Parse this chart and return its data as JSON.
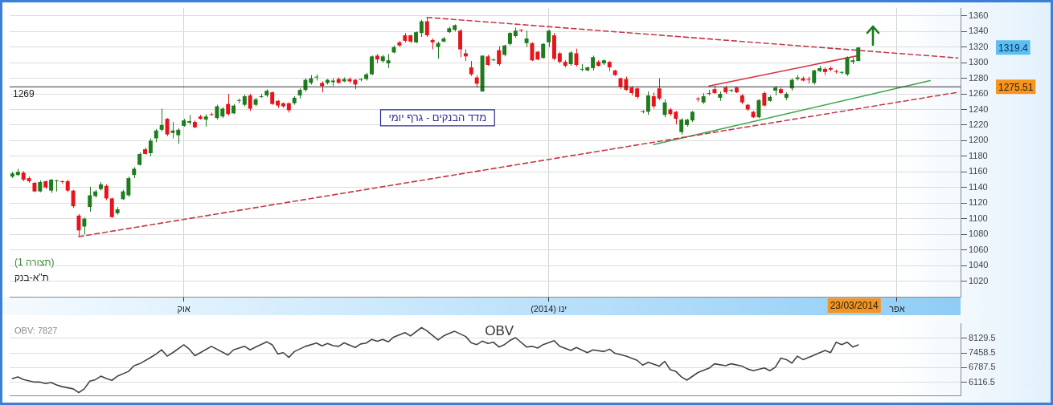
{
  "chart_data": [
    {
      "type": "candlestick",
      "title": "מדד הבנקים - גרף יומי",
      "categories": [
        null,
        null,
        null,
        null,
        null,
        null,
        null,
        null,
        null,
        null,
        null,
        null,
        null,
        null,
        null,
        null,
        null,
        null,
        null,
        null,
        null,
        null,
        null,
        null,
        null,
        null,
        null,
        null,
        null,
        null,
        null,
        "אוק",
        null,
        null,
        null,
        null,
        null,
        null,
        null,
        null,
        null,
        null,
        null,
        null,
        null,
        null,
        null,
        null,
        null,
        null,
        null,
        null,
        null,
        null,
        null,
        null,
        null,
        null,
        null,
        null,
        null,
        null,
        null,
        null,
        null,
        null,
        null,
        null,
        null,
        null,
        null,
        null,
        null,
        null,
        null,
        null,
        null,
        null,
        null,
        null,
        null,
        null,
        null,
        null,
        null,
        null,
        null,
        null,
        null,
        null,
        null,
        null,
        null,
        null,
        null,
        null,
        null,
        "ינו (2014)",
        null,
        null,
        null,
        null,
        null,
        null,
        null,
        null,
        null,
        null,
        null,
        null,
        null,
        null,
        null,
        null,
        null,
        null,
        null,
        null,
        null,
        null,
        null,
        null,
        null,
        null,
        null,
        null,
        null,
        null,
        null,
        null,
        null,
        null,
        null,
        null,
        null,
        null,
        null,
        null,
        null,
        null,
        null,
        null,
        null,
        null,
        null,
        null,
        null,
        null,
        null,
        null,
        null,
        null,
        null,
        null,
        null,
        null,
        null,
        null,
        null,
        null,
        "אפר",
        null,
        null,
        null,
        null,
        null,
        null,
        null,
        null,
        null,
        null,
        null
      ],
      "ohlc": [
        [
          1154,
          1160,
          1152,
          1158
        ],
        [
          1156,
          1164,
          1155,
          1160
        ],
        [
          1159,
          1161,
          1148,
          1150
        ],
        [
          1152,
          1154,
          1146,
          1148
        ],
        [
          1146,
          1147,
          1134,
          1135
        ],
        [
          1135,
          1149,
          1134,
          1147
        ],
        [
          1148,
          1149,
          1138,
          1140
        ],
        [
          1136,
          1151,
          1133,
          1150
        ],
        [
          1148,
          1150,
          1135,
          1148
        ],
        [
          1147,
          1149,
          1145,
          1147
        ],
        [
          1148,
          1150,
          1134,
          1136
        ],
        [
          1136,
          1137,
          1114,
          1116
        ],
        [
          1104,
          1106,
          1077,
          1085
        ],
        [
          1090,
          1102,
          1080,
          1100
        ],
        [
          1115,
          1141,
          1109,
          1130
        ],
        [
          1129,
          1137,
          1127,
          1135
        ],
        [
          1138,
          1147,
          1136,
          1144
        ],
        [
          1142,
          1144,
          1124,
          1126
        ],
        [
          1126,
          1127,
          1101,
          1102
        ],
        [
          1107,
          1115,
          1105,
          1112
        ],
        [
          1125,
          1137,
          1124,
          1135
        ],
        [
          1130,
          1154,
          1128,
          1152
        ],
        [
          1156,
          1166,
          1152,
          1164
        ],
        [
          1169,
          1185,
          1168,
          1183
        ],
        [
          1189,
          1191,
          1182,
          1183
        ],
        [
          1184,
          1203,
          1180,
          1200
        ],
        [
          1203,
          1215,
          1198,
          1213
        ],
        [
          1214,
          1241,
          1212,
          1220
        ],
        [
          1228,
          1229,
          1206,
          1208
        ],
        [
          1210,
          1224,
          1203,
          1213
        ],
        [
          1207,
          1216,
          1196,
          1214
        ],
        [
          1219,
          1228,
          1218,
          1226
        ],
        [
          1223,
          1233,
          1221,
          1225
        ],
        [
          1224,
          1226,
          1216,
          1217
        ],
        [
          1231,
          1233,
          1227,
          1228
        ],
        [
          1227,
          1234,
          1218,
          1231
        ],
        [
          1233,
          1236,
          1232,
          1234
        ],
        [
          1229,
          1246,
          1227,
          1244
        ],
        [
          1231,
          1243,
          1229,
          1241
        ],
        [
          1247,
          1260,
          1232,
          1234
        ],
        [
          1235,
          1247,
          1234,
          1245
        ],
        [
          1251,
          1254,
          1248,
          1251
        ],
        [
          1246,
          1259,
          1244,
          1257
        ],
        [
          1258,
          1260,
          1238,
          1241
        ],
        [
          1246,
          1255,
          1244,
          1253
        ],
        [
          1256,
          1260,
          1255,
          1256
        ],
        [
          1258,
          1266,
          1256,
          1264
        ],
        [
          1262,
          1263,
          1246,
          1247
        ],
        [
          1251,
          1252,
          1242,
          1245
        ],
        [
          1248,
          1249,
          1242,
          1244
        ],
        [
          1248,
          1249,
          1236,
          1239
        ],
        [
          1248,
          1257,
          1246,
          1255
        ],
        [
          1258,
          1267,
          1254,
          1265
        ],
        [
          1265,
          1280,
          1263,
          1278
        ],
        [
          1274,
          1284,
          1272,
          1280
        ],
        [
          1281,
          1285,
          1277,
          1281
        ],
        [
          1274,
          1276,
          1262,
          1270
        ],
        [
          1274,
          1279,
          1272,
          1278
        ],
        [
          1275,
          1280,
          1270,
          1277
        ],
        [
          1279,
          1281,
          1273,
          1274
        ],
        [
          1276,
          1281,
          1275,
          1279
        ],
        [
          1279,
          1281,
          1274,
          1276
        ],
        [
          1278,
          1279,
          1266,
          1272
        ],
        [
          1278,
          1280,
          1276,
          1278
        ],
        [
          1279,
          1287,
          1277,
          1285
        ],
        [
          1285,
          1309,
          1284,
          1308
        ],
        [
          1309,
          1311,
          1299,
          1304
        ],
        [
          1302,
          1310,
          1300,
          1308
        ],
        [
          1299,
          1311,
          1293,
          1303
        ],
        [
          1313,
          1322,
          1312,
          1320
        ],
        [
          1326,
          1328,
          1320,
          1322
        ],
        [
          1335,
          1338,
          1326,
          1328
        ],
        [
          1335,
          1336,
          1325,
          1327
        ],
        [
          1326,
          1340,
          1325,
          1339
        ],
        [
          1338,
          1355,
          1333,
          1353
        ],
        [
          1353,
          1358,
          1333,
          1335
        ],
        [
          1329,
          1331,
          1317,
          1326
        ],
        [
          1320,
          1327,
          1305,
          1325
        ],
        [
          1327,
          1333,
          1326,
          1331
        ],
        [
          1339,
          1346,
          1338,
          1344
        ],
        [
          1342,
          1349,
          1340,
          1348
        ],
        [
          1341,
          1343,
          1307,
          1317
        ],
        [
          1312,
          1317,
          1302,
          1308
        ],
        [
          1294,
          1302,
          1283,
          1285
        ],
        [
          1281,
          1284,
          1268,
          1273
        ],
        [
          1263,
          1309,
          1263,
          1309
        ],
        [
          1308,
          1310,
          1296,
          1297
        ],
        [
          1303,
          1305,
          1302,
          1303
        ],
        [
          1316,
          1321,
          1296,
          1298
        ],
        [
          1310,
          1323,
          1308,
          1322
        ],
        [
          1324,
          1339,
          1322,
          1338
        ],
        [
          1334,
          1345,
          1332,
          1341
        ],
        [
          1341,
          1343,
          1339,
          1341
        ],
        [
          1325,
          1341,
          1320,
          1331
        ],
        [
          1325,
          1326,
          1302,
          1303
        ],
        [
          1314,
          1315,
          1303,
          1304
        ],
        [
          1306,
          1325,
          1305,
          1324
        ],
        [
          1326,
          1342,
          1320,
          1341
        ],
        [
          1335,
          1338,
          1303,
          1305
        ],
        [
          1312,
          1314,
          1299,
          1301
        ],
        [
          1301,
          1303,
          1294,
          1296
        ],
        [
          1298,
          1315,
          1296,
          1313
        ],
        [
          1312,
          1318,
          1295,
          1297
        ],
        [
          1291,
          1298,
          1289,
          1291
        ],
        [
          1290,
          1295,
          1289,
          1294
        ],
        [
          1293,
          1309,
          1290,
          1307
        ],
        [
          1301,
          1303,
          1295,
          1296
        ],
        [
          1299,
          1304,
          1297,
          1303
        ],
        [
          1301,
          1302,
          1289,
          1294
        ],
        [
          1290,
          1291,
          1283,
          1284
        ],
        [
          1280,
          1281,
          1266,
          1269
        ],
        [
          1279,
          1282,
          1264,
          1265
        ],
        [
          1268,
          1270,
          1258,
          1261
        ],
        [
          1267,
          1268,
          1254,
          1256
        ],
        [
          1237,
          1239,
          1235,
          1237
        ],
        [
          1237,
          1263,
          1233,
          1258
        ],
        [
          1257,
          1262,
          1241,
          1244
        ],
        [
          1267,
          1280,
          1252,
          1254
        ],
        [
          1233,
          1253,
          1230,
          1249
        ],
        [
          1240,
          1242,
          1232,
          1234
        ],
        [
          1237,
          1238,
          1221,
          1228
        ],
        [
          1211,
          1229,
          1208,
          1227
        ],
        [
          1220,
          1228,
          1218,
          1227
        ],
        [
          1226,
          1238,
          1224,
          1237
        ],
        [
          1253,
          1256,
          1250,
          1253
        ],
        [
          1249,
          1261,
          1247,
          1257
        ],
        [
          1260,
          1265,
          1258,
          1261
        ],
        [
          1266,
          1270,
          1260,
          1261
        ],
        [
          1255,
          1263,
          1251,
          1260
        ],
        [
          1268,
          1270,
          1260,
          1262
        ],
        [
          1264,
          1266,
          1262,
          1264
        ],
        [
          1268,
          1269,
          1261,
          1262
        ],
        [
          1258,
          1260,
          1247,
          1249
        ],
        [
          1246,
          1247,
          1238,
          1240
        ],
        [
          1237,
          1238,
          1229,
          1230
        ],
        [
          1230,
          1253,
          1229,
          1252
        ],
        [
          1261,
          1263,
          1244,
          1245
        ],
        [
          1251,
          1258,
          1250,
          1256
        ],
        [
          1264,
          1270,
          1258,
          1268
        ],
        [
          1266,
          1268,
          1260,
          1261
        ],
        [
          1255,
          1262,
          1252,
          1260
        ],
        [
          1267,
          1280,
          1264,
          1278
        ],
        [
          1279,
          1284,
          1277,
          1281
        ],
        [
          1280,
          1282,
          1276,
          1277
        ],
        [
          1278,
          1282,
          1273,
          1278
        ],
        [
          1274,
          1291,
          1272,
          1290
        ],
        [
          1289,
          1296,
          1288,
          1293
        ],
        [
          1292,
          1294,
          1284,
          1288
        ],
        [
          1293,
          1295,
          1289,
          1291
        ],
        [
          1288,
          1291,
          1286,
          1288
        ],
        [
          1287,
          1289,
          1285,
          1287
        ],
        [
          1285,
          1308,
          1283,
          1307
        ],
        [
          1301,
          1306,
          1298,
          1303
        ],
        [
          1302,
          1320,
          1302,
          1319.4
        ],
        null,
        null,
        null,
        null,
        null,
        null,
        null,
        null,
        null,
        null,
        null,
        null,
        null,
        null,
        null,
        null,
        null,
        null
      ],
      "colors": [
        "#1e7b1e",
        "#1e7b1e",
        "#e8141c",
        "#e8141c",
        "#e8141c",
        "#1e7b1e",
        "#e8141c",
        "#1e7b1e",
        "#1e7b1e",
        "#e8141c",
        "#e8141c",
        "#e8141c",
        "#e8141c",
        "#1e7b1e",
        "#1e7b1e",
        "#1e7b1e",
        "#1e7b1e",
        "#e8141c",
        "#e8141c",
        "#1e7b1e",
        "#1e7b1e",
        "#1e7b1e",
        "#1e7b1e",
        "#1e7b1e",
        "#e8141c",
        "#1e7b1e",
        "#1e7b1e",
        "#1e7b1e",
        "#e8141c",
        "#1e7b1e",
        "#1e7b1e",
        "#1e7b1e",
        "#1e7b1e",
        "#e8141c",
        "#e8141c",
        "#1e7b1e",
        "#e8141c",
        "#1e7b1e",
        "#1e7b1e",
        "#e8141c",
        "#1e7b1e",
        "#1e7b1e",
        "#1e7b1e",
        "#e8141c",
        "#1e7b1e",
        "#1e7b1e",
        "#1e7b1e",
        "#e8141c",
        "#e8141c",
        "#e8141c",
        "#e8141c",
        "#1e7b1e",
        "#1e7b1e",
        "#1e7b1e",
        "#1e7b1e",
        "#1e7b1e",
        "#e8141c",
        "#1e7b1e",
        "#1e7b1e",
        "#e8141c",
        "#1e7b1e",
        "#e8141c",
        "#e8141c",
        "#1e7b1e",
        "#1e7b1e",
        "#1e7b1e",
        "#e8141c",
        "#1e7b1e",
        "#1e7b1e",
        "#1e7b1e",
        "#e8141c",
        "#e8141c",
        "#e8141c",
        "#1e7b1e",
        "#1e7b1e",
        "#e8141c",
        "#e8141c",
        "#1e7b1e",
        "#1e7b1e",
        "#1e7b1e",
        "#1e7b1e",
        "#e8141c",
        "#e8141c",
        "#e8141c",
        "#e8141c",
        "#1e7b1e",
        "#e8141c",
        "#1e7b1e",
        "#e8141c",
        "#1e7b1e",
        "#1e7b1e",
        "#1e7b1e",
        "#e8141c",
        "#1e7b1e",
        "#e8141c",
        "#e8141c",
        "#1e7b1e",
        "#1e7b1e",
        "#e8141c",
        "#e8141c",
        "#e8141c",
        "#1e7b1e",
        "#e8141c",
        "#1e7b1e",
        "#1e7b1e",
        "#1e7b1e",
        "#e8141c",
        "#1e7b1e",
        "#e8141c",
        "#e8141c",
        "#e8141c",
        "#e8141c",
        "#e8141c",
        "#e8141c",
        "#e8141c",
        "#1e7b1e",
        "#e8141c",
        "#e8141c",
        "#1e7b1e",
        "#e8141c",
        "#e8141c",
        "#1e7b1e",
        "#1e7b1e",
        "#1e7b1e",
        "#e8141c",
        "#1e7b1e",
        "#1e7b1e",
        "#e8141c",
        "#1e7b1e",
        "#e8141c",
        "#1e7b1e",
        "#e8141c",
        "#e8141c",
        "#e8141c",
        "#e8141c",
        "#1e7b1e",
        "#e8141c",
        "#1e7b1e",
        "#1e7b1e",
        "#e8141c",
        "#1e7b1e",
        "#1e7b1e",
        "#1e7b1e",
        "#e8141c",
        "#e8141c",
        "#1e7b1e",
        "#1e7b1e",
        "#e8141c",
        "#e8141c",
        "#e8141c",
        "#1e7b1e",
        "#1e7b1e",
        "#1e7b1e",
        "#1e7b1e",
        null,
        null,
        null,
        null,
        null,
        null,
        null,
        null,
        null,
        null,
        null,
        null,
        null,
        null,
        null,
        null,
        null,
        null
      ],
      "series": [
        {
          "type": "line",
          "color": "#c23b4a",
          "line_style": "dashed",
          "values": [
            null,
            null,
            null,
            null,
            null,
            null,
            null,
            null,
            null,
            null,
            null,
            null,
            1077,
            null,
            null,
            null,
            null,
            null,
            null,
            null,
            null,
            null,
            null,
            null,
            null,
            null,
            null,
            null,
            null,
            null,
            null,
            null,
            null,
            null,
            null,
            null,
            null,
            null,
            null,
            null,
            null,
            null,
            null,
            null,
            null,
            null,
            null,
            null,
            null,
            null,
            null,
            null,
            null,
            null,
            null,
            null,
            null,
            null,
            null,
            null,
            null,
            null,
            null,
            null,
            null,
            null,
            null,
            null,
            null,
            null,
            null,
            null,
            null,
            null,
            null,
            null,
            null,
            null,
            null,
            null,
            null,
            null,
            null,
            null,
            null,
            null,
            null,
            null,
            null,
            null,
            null,
            null,
            null,
            null,
            null,
            null,
            null,
            null,
            null,
            null,
            null,
            null,
            null,
            null,
            null,
            null,
            null,
            null,
            null,
            null,
            null,
            null,
            null,
            null,
            null,
            null,
            null,
            null,
            null,
            null,
            null,
            null,
            null,
            null,
            null,
            null,
            null,
            null,
            null,
            null,
            null,
            null,
            null,
            null,
            null,
            null,
            null,
            null,
            null,
            null,
            null,
            null,
            null,
            null,
            null,
            null,
            null,
            null,
            null,
            null,
            null,
            null,
            null,
            null,
            null,
            null,
            null,
            null,
            null,
            null,
            null,
            null,
            null,
            null,
            null,
            null,
            null,
            null,
            null,
            null,
            null,
            1262
          ]
        },
        {
          "type": "line",
          "color": "#c23b4a",
          "line_style": "dashed",
          "values": [
            null,
            null,
            null,
            null,
            null,
            null,
            null,
            null,
            null,
            null,
            null,
            null,
            null,
            null,
            null,
            null,
            null,
            null,
            null,
            null,
            null,
            null,
            null,
            null,
            null,
            null,
            null,
            null,
            null,
            null,
            null,
            null,
            null,
            null,
            null,
            null,
            null,
            null,
            null,
            null,
            null,
            null,
            null,
            null,
            null,
            null,
            null,
            null,
            null,
            null,
            null,
            null,
            null,
            null,
            null,
            null,
            null,
            null,
            null,
            null,
            null,
            null,
            null,
            null,
            null,
            null,
            null,
            null,
            null,
            null,
            null,
            null,
            null,
            null,
            null,
            1358,
            null,
            null,
            null,
            null,
            null,
            null,
            null,
            null,
            null,
            null,
            null,
            null,
            null,
            null,
            null,
            null,
            null,
            null,
            null,
            null,
            null,
            null,
            null,
            null,
            null,
            null,
            null,
            null,
            null,
            null,
            null,
            null,
            null,
            null,
            null,
            null,
            null,
            null,
            null,
            null,
            null,
            null,
            null,
            null,
            null,
            null,
            null,
            null,
            null,
            null,
            null,
            null,
            null,
            null,
            null,
            null,
            null,
            null,
            null,
            null,
            null,
            null,
            null,
            null,
            null,
            null,
            null,
            null,
            null,
            null,
            null,
            null,
            null,
            null,
            null,
            null,
            null,
            null,
            null,
            null,
            null,
            null,
            null,
            null,
            null,
            null,
            null,
            null,
            null,
            null,
            null,
            null,
            null,
            null,
            null,
            1306
          ]
        },
        {
          "type": "line",
          "color": "#3fa34d",
          "line_style": "solid",
          "values": [
            null,
            null,
            null,
            null,
            null,
            null,
            null,
            null,
            null,
            null,
            null,
            null,
            null,
            null,
            null,
            null,
            null,
            null,
            null,
            null,
            null,
            null,
            null,
            null,
            null,
            null,
            null,
            null,
            null,
            null,
            null,
            null,
            null,
            null,
            null,
            null,
            null,
            null,
            null,
            null,
            null,
            null,
            null,
            null,
            null,
            null,
            null,
            null,
            null,
            null,
            null,
            null,
            null,
            null,
            null,
            null,
            null,
            null,
            null,
            null,
            null,
            null,
            null,
            null,
            null,
            null,
            null,
            null,
            null,
            null,
            null,
            null,
            null,
            null,
            null,
            null,
            null,
            null,
            null,
            null,
            null,
            null,
            null,
            null,
            null,
            null,
            null,
            null,
            null,
            null,
            null,
            null,
            null,
            null,
            null,
            null,
            null,
            null,
            null,
            null,
            null,
            null,
            null,
            null,
            null,
            null,
            null,
            null,
            null,
            null,
            null,
            null,
            null,
            null,
            null,
            null,
            1195,
            null,
            null,
            null,
            null,
            null,
            null,
            null,
            null,
            null,
            null,
            null,
            null,
            null,
            null,
            null,
            null,
            null,
            null,
            null,
            null,
            null,
            null,
            null,
            null,
            null,
            null,
            null,
            null,
            null,
            null,
            null,
            null,
            null,
            null,
            null,
            null,
            null,
            null,
            null,
            null,
            null,
            null,
            null,
            null,
            null,
            null,
            null,
            null,
            null,
            1277,
            null,
            null,
            null,
            null,
            null
          ]
        },
        {
          "type": "line",
          "color": "#d9303c",
          "line_style": "solid",
          "values": [
            null,
            null,
            null,
            null,
            null,
            null,
            null,
            null,
            null,
            null,
            null,
            null,
            null,
            null,
            null,
            null,
            null,
            null,
            null,
            null,
            null,
            null,
            null,
            null,
            null,
            null,
            null,
            null,
            null,
            null,
            null,
            null,
            null,
            null,
            null,
            null,
            null,
            null,
            null,
            null,
            null,
            null,
            null,
            null,
            null,
            null,
            null,
            null,
            null,
            null,
            null,
            null,
            null,
            null,
            null,
            null,
            null,
            null,
            null,
            null,
            null,
            null,
            null,
            null,
            null,
            null,
            null,
            null,
            null,
            null,
            null,
            null,
            null,
            null,
            null,
            null,
            null,
            null,
            null,
            null,
            null,
            null,
            null,
            null,
            null,
            null,
            null,
            null,
            null,
            null,
            null,
            null,
            null,
            null,
            null,
            null,
            null,
            null,
            null,
            null,
            null,
            null,
            null,
            null,
            null,
            null,
            null,
            null,
            null,
            null,
            null,
            null,
            null,
            null,
            null,
            null,
            null,
            null,
            null,
            null,
            null,
            null,
            null,
            null,
            null,
            null,
            1270,
            null,
            null,
            null,
            null,
            null,
            null,
            null,
            null,
            null,
            null,
            null,
            null,
            null,
            null,
            null,
            null,
            null,
            null,
            null,
            null,
            null,
            null,
            null,
            null,
            null,
            null,
            1309,
            null,
            null,
            null,
            null,
            null,
            null,
            null,
            null,
            null,
            null,
            null,
            null,
            null,
            null,
            null,
            null,
            null,
            null
          ]
        }
      ],
      "ylim": [
        1000,
        1370
      ],
      "yticks": [
        1020,
        1040,
        1060,
        1080,
        1100,
        1120,
        1140,
        1160,
        1180,
        1200,
        1220,
        1240,
        1260,
        1280,
        1300,
        1320,
        1340,
        1360
      ],
      "grid": true,
      "legend": false,
      "marker": "none",
      "ref_lines": [
        {
          "axis": "y",
          "value": 1269,
          "label": "1269",
          "color": "#333333"
        }
      ],
      "annotations": [
        "1275.51",
        "1319.4",
        "23/03/2014",
        "(תצורה 1)",
        "ת\"א-בנק"
      ]
    },
    {
      "type": "line",
      "title": "OBV",
      "categories": [
        null,
        null,
        null,
        null,
        null,
        null,
        null,
        null,
        null,
        null,
        null,
        null,
        null,
        null,
        null,
        null,
        null,
        null,
        null,
        null,
        null,
        null,
        null,
        null,
        null,
        null,
        null,
        null,
        null,
        null,
        null,
        null,
        null,
        null,
        null,
        null,
        null,
        null,
        null,
        null,
        null,
        null,
        null,
        null,
        null,
        null,
        null,
        null,
        null,
        null,
        null,
        null,
        null,
        null,
        null,
        null,
        null,
        null,
        null,
        null,
        null,
        null,
        null,
        null,
        null,
        null,
        null,
        null,
        null,
        null,
        null,
        null,
        null,
        null,
        null,
        null,
        null,
        null,
        null,
        null,
        null,
        null,
        null,
        null,
        null,
        null,
        null,
        null,
        null,
        null,
        null,
        null,
        null,
        null,
        null,
        null,
        null,
        null,
        null,
        null,
        null,
        null,
        null,
        null,
        null,
        null,
        null,
        null,
        null,
        null,
        null,
        null,
        null,
        null,
        null,
        null,
        null,
        null,
        null,
        null,
        null,
        null,
        null,
        null,
        null,
        null,
        null,
        null,
        null,
        null,
        null,
        null,
        null,
        null,
        null,
        null,
        null,
        null,
        null,
        null,
        null,
        null,
        null,
        null,
        null,
        null,
        null,
        null,
        null,
        null,
        null,
        null,
        null,
        null,
        null,
        null,
        null,
        null,
        null,
        null,
        null,
        null,
        null,
        null,
        null,
        null,
        null,
        null,
        null,
        null,
        null,
        null
      ],
      "series": [
        {
          "color": "#444444",
          "values": [
            6280,
            6360,
            6240,
            null,
            6120,
            6120,
            6050,
            6100,
            5990,
            5910,
            null,
            5810,
            5640,
            5810,
            6160,
            6230,
            6390,
            6280,
            6200,
            6390,
            null,
            6610,
            6870,
            6960,
            null,
            7250,
            7410,
            7600,
            7310,
            7470,
            null,
            7830,
            7630,
            7330,
            7470,
            null,
            7760,
            null,
            null,
            7360,
            7600,
            null,
            7760,
            7600,
            7730,
            null,
            7970,
            7830,
            7410,
            7470,
            7250,
            7520,
            null,
            7760,
            null,
            7910,
            7780,
            7890,
            7790,
            7760,
            7920,
            null,
            7710,
            7870,
            7910,
            8080,
            7990,
            8080,
            7970,
            8190,
            null,
            8390,
            8240,
            null,
            8620,
            8470,
            null,
            8050,
            8240,
            8350,
            8450,
            null,
            8210,
            7920,
            7840,
            8000,
            7890,
            7950,
            7730,
            7840,
            8030,
            8160,
            null,
            7730,
            7760,
            7680,
            7840,
            null,
            8020,
            7760,
            null,
            7570,
            7710,
            null,
            7470,
            7600,
            null,
            7520,
            7630,
            7440,
            null,
            7310,
            null,
            7120,
            6900,
            7030,
            null,
            6850,
            7070,
            6690,
            6610,
            6360,
            6210,
            null,
            6560,
            null,
            6760,
            6960,
            null,
            6870,
            6960,
            null,
            6850,
            6720,
            6640,
            null,
            6770,
            6640,
            6800,
            7220,
            7150,
            6990,
            7310,
            7150,
            7250,
            null,
            null,
            7570,
            7470,
            7950,
            7840,
            7950,
            7730,
            7830,
            null,
            null,
            null,
            null,
            null,
            null,
            null,
            null,
            null,
            null,
            null,
            null,
            null,
            null,
            null,
            null,
            null,
            null
          ]
        }
      ],
      "ylim": [
        5510,
        8800
      ],
      "yticks": [
        6116.5,
        6787.5,
        7458.5,
        8129.5
      ],
      "tick_labels": "y",
      "grid": "y",
      "legend": false,
      "marker": "none",
      "annotations": [
        "OBV: 7827"
      ]
    }
  ]
}
